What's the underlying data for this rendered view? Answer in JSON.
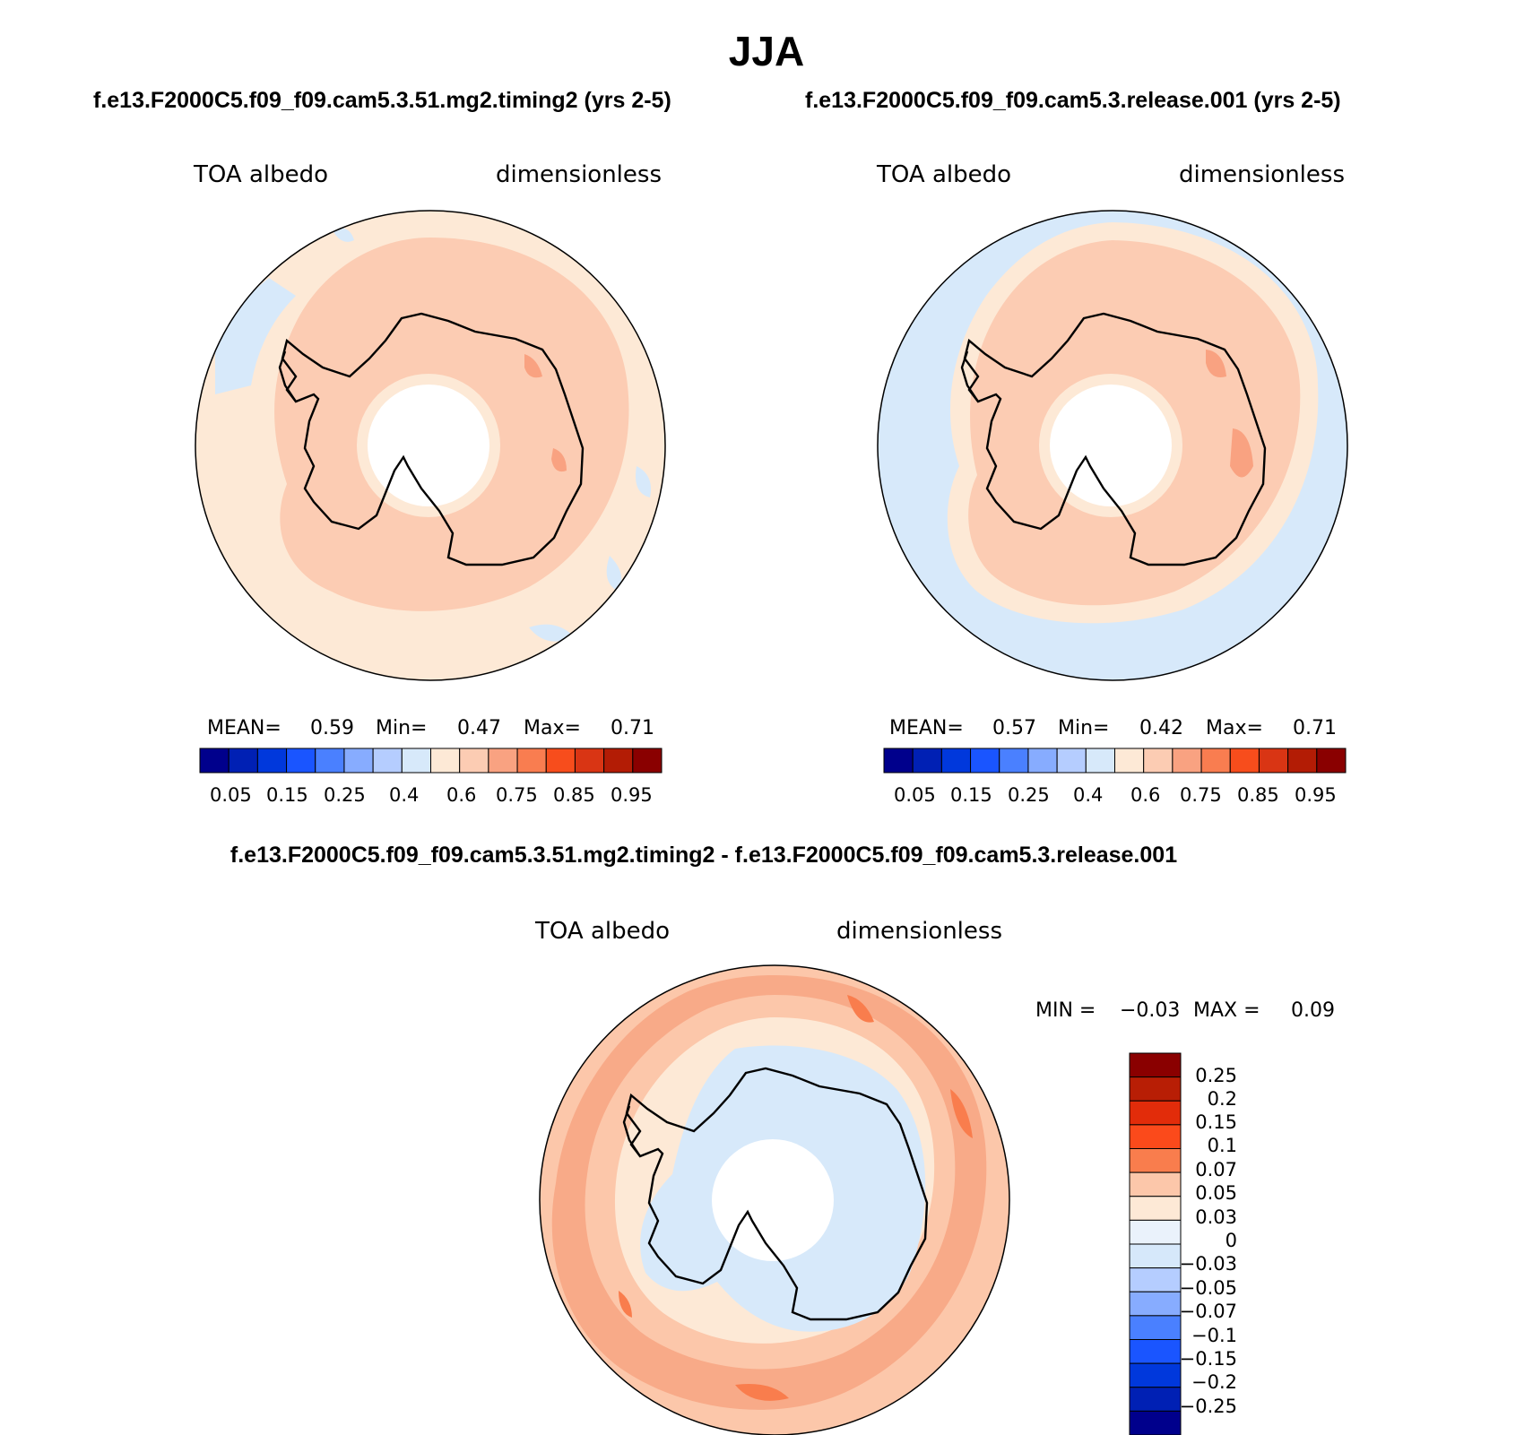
{
  "figure": {
    "season": "JJA",
    "case1_title": "f.e13.F2000C5.f09_f09.cam5.3.51.mg2.timing2 (yrs 2-5)",
    "case2_title": "f.e13.F2000C5.f09_f09.cam5.3.release.001 (yrs 2-5)",
    "diff_title": "f.e13.F2000C5.f09_f09.cam5.3.51.mg2.timing2 - f.e13.F2000C5.f09_f09.cam5.3.release.001"
  },
  "panels": [
    {
      "variable": "TOA albedo",
      "units": "dimensionless",
      "mean_label": "MEAN=",
      "mean": "0.59",
      "min_label": "Min=",
      "min": "0.47",
      "max_label": "Max=",
      "max": "0.71"
    },
    {
      "variable": "TOA albedo",
      "units": "dimensionless",
      "mean_label": "MEAN=",
      "mean": "0.57",
      "min_label": "Min=",
      "min": "0.42",
      "max_label": "Max=",
      "max": "0.71"
    }
  ],
  "diff_panel": {
    "variable": "TOA albedo",
    "units": "dimensionless",
    "min_label": "MIN =",
    "min": "−0.03",
    "max_label": "MAX =",
    "max": "0.09"
  },
  "colorbar_main": {
    "colors": [
      "#00008c",
      "#0020b4",
      "#0038dc",
      "#1a55ff",
      "#4a80ff",
      "#87acff",
      "#b5cdff",
      "#d7e9fa",
      "#fde9d6",
      "#fcccb3",
      "#f9a281",
      "#f97d50",
      "#f74d1c",
      "#d93514",
      "#b31c05",
      "#8a0000"
    ],
    "ticks": [
      "0.05",
      "0.15",
      "0.25",
      "0.4",
      "0.6",
      "0.75",
      "0.85",
      "0.95"
    ]
  },
  "colorbar_diff": {
    "colors": [
      "#8a0000",
      "#b81e05",
      "#e22c0a",
      "#fb4a1b",
      "#f97d4d",
      "#fcc7aa",
      "#fde9d6",
      "#eaf2fb",
      "#d6e8fa",
      "#b5cdff",
      "#87acff",
      "#4a80ff",
      "#1a55ff",
      "#0038dc",
      "#0020b4",
      "#00008c"
    ],
    "ticks": [
      "0.25",
      "0.2",
      "0.15",
      "0.1",
      "0.07",
      "0.05",
      "0.03",
      "0",
      "−0.03",
      "−0.05",
      "−0.07",
      "−0.1",
      "−0.15",
      "−0.2",
      "−0.25"
    ]
  }
}
